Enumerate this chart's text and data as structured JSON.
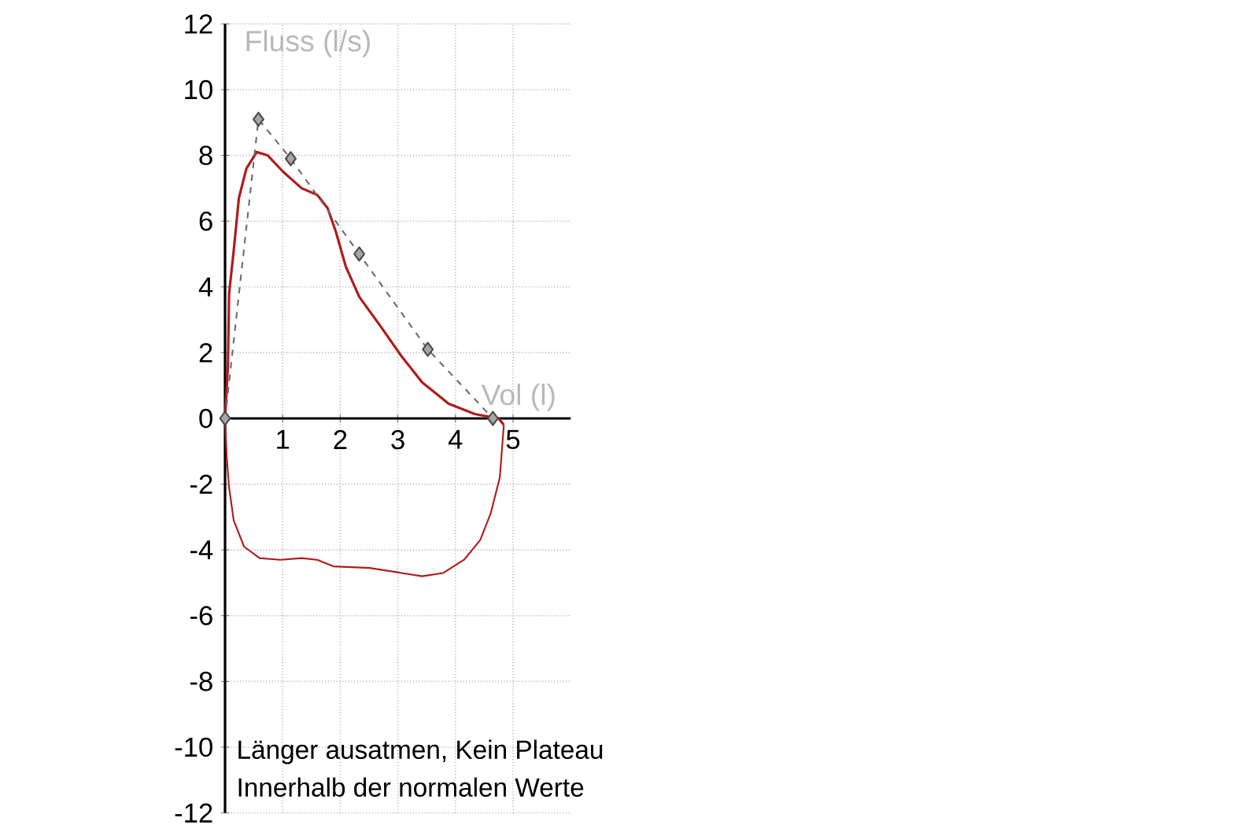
{
  "chart_data": {
    "type": "line",
    "xlabel": "Vol (l)",
    "ylabel": "Fluss (l/s)",
    "annotations": [
      "Länger ausatmen, Kein Plateau",
      "Innerhalb der normalen Werte"
    ],
    "xlim": [
      0,
      6
    ],
    "ylim": [
      -12,
      12
    ],
    "xticks": [
      1,
      2,
      3,
      4,
      5
    ],
    "yticks": [
      -12,
      -10,
      -8,
      -6,
      -4,
      -2,
      0,
      2,
      4,
      6,
      8,
      10,
      12
    ],
    "grid": true,
    "series": [
      {
        "color": "#b01c1c",
        "marker": "none",
        "line_style": "solid",
        "x": [
          0,
          0.05,
          0.07,
          0.15,
          0.24,
          0.37,
          0.55,
          0.74,
          1.01,
          1.33,
          1.6,
          1.78,
          1.92,
          2.1,
          2.33,
          2.7,
          3.06,
          3.42,
          3.88,
          4.34,
          4.75,
          4.84
        ],
        "values": [
          0,
          1.6,
          3.8,
          5.1,
          6.7,
          7.6,
          8.1,
          8,
          7.5,
          7,
          6.8,
          6.4,
          5.7,
          4.6,
          3.7,
          2.8,
          1.9,
          1.1,
          0.45,
          0.13,
          0,
          -0.2
        ]
      },
      {
        "color": "#b01c1c",
        "marker": "none",
        "line_style": "solid",
        "x": [
          0,
          0.03,
          0.07,
          0.15,
          0.33,
          0.6,
          0.96,
          1.33,
          1.6,
          1.88,
          2.51,
          3.06,
          3.42,
          3.79,
          4.15,
          4.43,
          4.61,
          4.77,
          4.84
        ],
        "values": [
          0,
          -1.2,
          -2.1,
          -3.1,
          -3.9,
          -4.25,
          -4.3,
          -4.25,
          -4.3,
          -4.5,
          -4.55,
          -4.7,
          -4.8,
          -4.7,
          -4.3,
          -3.7,
          -2.9,
          -1.8,
          -0.2
        ]
      },
      {
        "color": "#6e6e6e",
        "marker": "diamond",
        "line_style": "dashed",
        "x": [
          0,
          0.58,
          1.14,
          2.33,
          3.52,
          4.65
        ],
        "values": [
          0,
          9.1,
          7.9,
          5,
          2.1,
          0
        ]
      }
    ]
  }
}
